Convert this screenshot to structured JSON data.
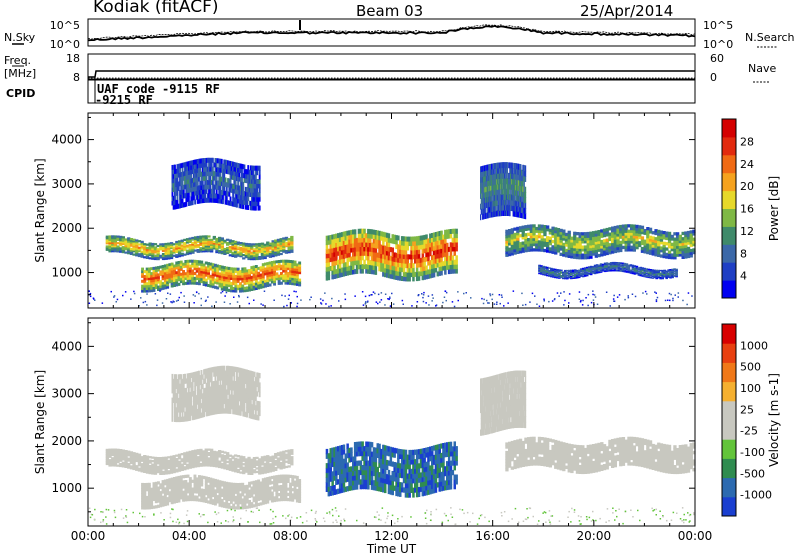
{
  "header": {
    "title": "Kodiak (fitACF)",
    "beam": "Beam 03",
    "date": "25/Apr/2014"
  },
  "status_panels": {
    "nsky_label": "N.Sky",
    "nsearch_label": "N.Search",
    "noise_ticks": [
      "10^5",
      "10^0"
    ],
    "freq_label": "Freq.",
    "freq_unit": "[MHz]",
    "freq_ticks": [
      "18",
      "8"
    ],
    "nave_label": "Nave",
    "nave_ticks": [
      "60",
      "0"
    ],
    "cpid_label": "CPID",
    "cpid_line1": "UAF code -9115 RF",
    "cpid_line2": "-9215 RF"
  },
  "chart_data": [
    {
      "type": "heatmap",
      "panel": "power",
      "ylabel": "Slant Range [km]",
      "yticks": [
        1000,
        2000,
        3000,
        4000
      ],
      "ylim": [
        200,
        4600
      ],
      "xticks": [
        "00:00",
        "04:00",
        "08:00",
        "12:00",
        "16:00",
        "20:00",
        "00:00"
      ],
      "xlim_hours": [
        0,
        24
      ],
      "colorbar": {
        "label": "Power [dB]",
        "ticks": [
          "28",
          "24",
          "20",
          "16",
          "12",
          "8",
          "4"
        ],
        "colors": [
          "#0000f0",
          "#1f3fc4",
          "#3b68a8",
          "#3f8a6a",
          "#7fb845",
          "#e6d82a",
          "#f5a21e",
          "#f06a14",
          "#e22a0e",
          "#d40000"
        ]
      },
      "bands": [
        {
          "t0": 0.7,
          "t1": 8.1,
          "r0": 1380,
          "r1": 1750,
          "level": 0.65
        },
        {
          "t0": 2.1,
          "t1": 8.4,
          "r0": 650,
          "r1": 1200,
          "level": 0.8
        },
        {
          "t0": 9.4,
          "t1": 14.6,
          "r0": 900,
          "r1": 1900,
          "level": 0.85
        },
        {
          "t0": 16.5,
          "t1": 24.0,
          "r0": 1400,
          "r1": 2000,
          "level": 0.55
        },
        {
          "t0": 17.8,
          "t1": 23.3,
          "r0": 950,
          "r1": 1150,
          "level": 0.3
        },
        {
          "t0": 15.5,
          "t1": 17.3,
          "r0": 2200,
          "r1": 3400,
          "level": 0.35
        },
        {
          "t0": 3.3,
          "t1": 6.8,
          "r0": 2500,
          "r1": 3500,
          "level": 0.25
        }
      ]
    },
    {
      "type": "heatmap",
      "panel": "velocity",
      "ylabel": "Slant Range [km]",
      "yticks": [
        1000,
        2000,
        3000,
        4000
      ],
      "ylim": [
        200,
        4600
      ],
      "xticks": [
        "00:00",
        "04:00",
        "08:00",
        "12:00",
        "16:00",
        "20:00",
        "00:00"
      ],
      "xlabel": "Time UT",
      "colorbar": {
        "label": "Velocity [m s-1]",
        "ticks": [
          "1000",
          "500",
          "100",
          "25",
          "-25",
          "-100",
          "-500",
          "-1000"
        ],
        "colors": [
          "#1a3fd0",
          "#2c6ab0",
          "#2f8c50",
          "#62c43a",
          "#c8c8c0",
          "#c8c8c0",
          "#f5b030",
          "#f07818",
          "#e84010",
          "#d80000"
        ]
      },
      "bands": [
        {
          "t0": 0.7,
          "t1": 8.1,
          "r0": 1380,
          "r1": 1750,
          "level": 0.5
        },
        {
          "t0": 2.1,
          "t1": 8.4,
          "r0": 650,
          "r1": 1200,
          "level": 0.5
        },
        {
          "t0": 9.4,
          "t1": 14.6,
          "r0": 900,
          "r1": 1900,
          "level": 0.15
        },
        {
          "t0": 16.5,
          "t1": 24.0,
          "r0": 1400,
          "r1": 2000,
          "level": 0.5
        },
        {
          "t0": 15.5,
          "t1": 17.3,
          "r0": 2200,
          "r1": 3400,
          "level": 0.5
        },
        {
          "t0": 3.3,
          "t1": 6.8,
          "r0": 2500,
          "r1": 3500,
          "level": 0.5
        }
      ]
    }
  ]
}
